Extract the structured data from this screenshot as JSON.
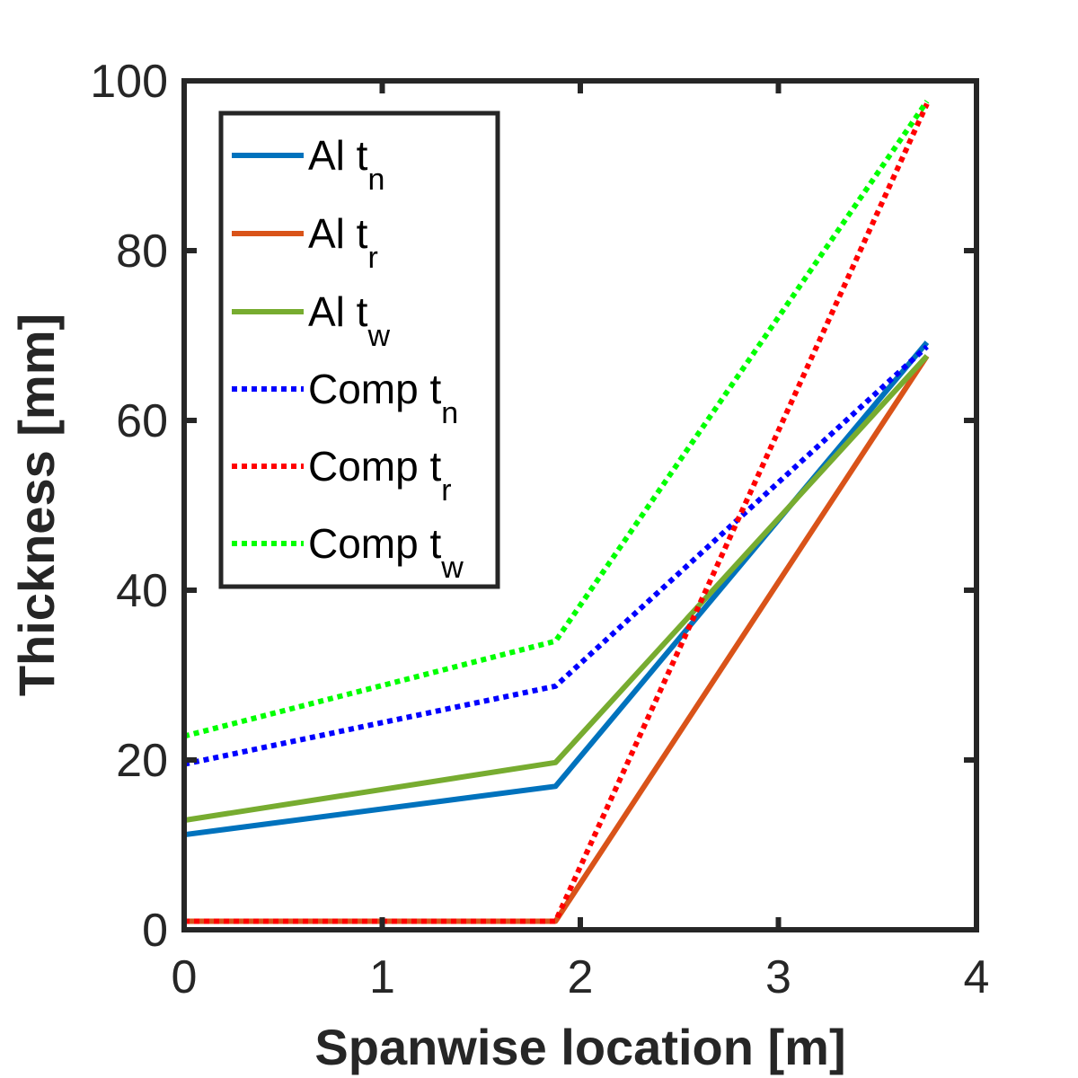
{
  "chart_data": {
    "type": "line",
    "xlabel": "Spanwise location [m]",
    "ylabel": "Thickness [mm]",
    "xlim": [
      0,
      4
    ],
    "ylim": [
      0,
      100
    ],
    "xticks": [
      "0",
      "1",
      "2",
      "3",
      "4"
    ],
    "yticks": [
      "0",
      "20",
      "40",
      "60",
      "80",
      "100"
    ],
    "grid": false,
    "legend_position": "top-left",
    "x": [
      0,
      1.875,
      3.75
    ],
    "series": [
      {
        "name": "Al",
        "sub": "n",
        "values": [
          11.2,
          16.9,
          69.2
        ],
        "color": "#0072BD",
        "style": "solid"
      },
      {
        "name": "Al",
        "sub": "r",
        "values": [
          1.0,
          1.0,
          67.6
        ],
        "color": "#D95319",
        "style": "solid"
      },
      {
        "name": "Al",
        "sub": "w",
        "values": [
          12.9,
          19.7,
          67.6
        ],
        "color": "#77AC30",
        "style": "solid"
      },
      {
        "name": "Comp",
        "sub": "n",
        "values": [
          19.5,
          28.7,
          68.7
        ],
        "color": "#0000FF",
        "style": "dotted"
      },
      {
        "name": "Comp",
        "sub": "r",
        "values": [
          1.0,
          1.0,
          97.3
        ],
        "color": "#FF0000",
        "style": "dotted"
      },
      {
        "name": "Comp",
        "sub": "w",
        "values": [
          22.8,
          34.0,
          97.6
        ],
        "color": "#00FF00",
        "style": "dotted"
      }
    ]
  }
}
